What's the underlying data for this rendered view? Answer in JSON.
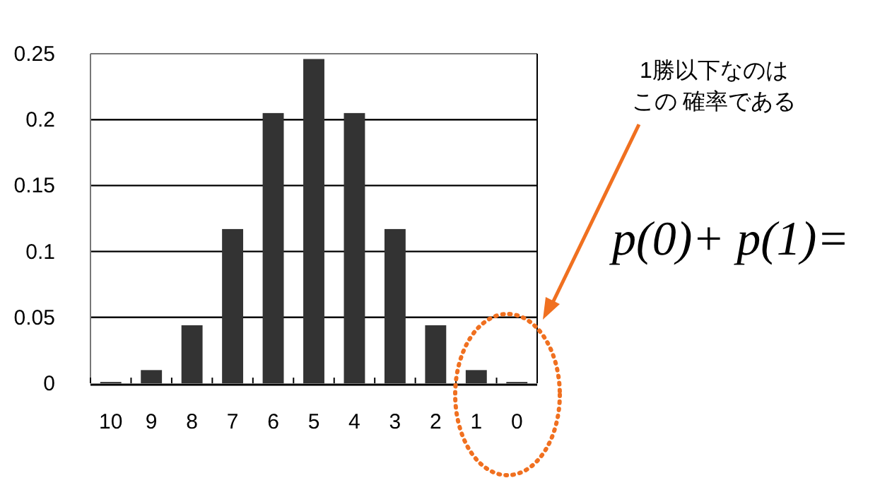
{
  "chart_data": {
    "type": "bar",
    "categories": [
      "10",
      "9",
      "8",
      "7",
      "6",
      "5",
      "4",
      "3",
      "2",
      "1",
      "0"
    ],
    "values": [
      0.001,
      0.01,
      0.044,
      0.117,
      0.205,
      0.246,
      0.205,
      0.117,
      0.044,
      0.01,
      0.001
    ],
    "color": "#333333",
    "ylim": [
      0,
      0.25
    ],
    "yticks": [
      0,
      0.05,
      0.1,
      0.15,
      0.2,
      0.25
    ],
    "grid": "y",
    "annotations": [
      "1勝以下なのは",
      "この 確率である",
      "p(0)+ p(1)="
    ]
  }
}
